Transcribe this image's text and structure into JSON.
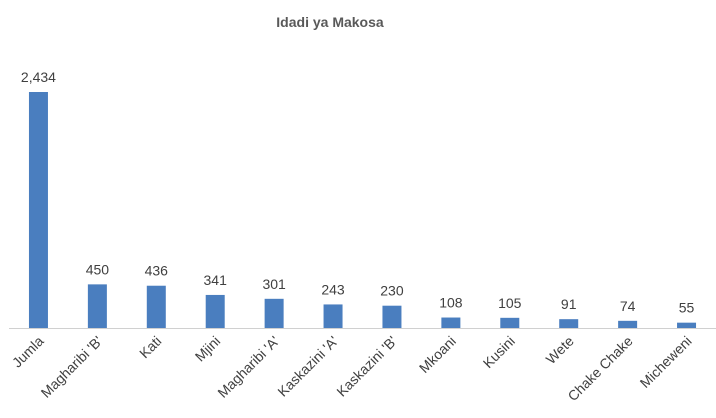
{
  "chart_data": {
    "type": "bar",
    "title": "Idadi ya Makosa",
    "categories": [
      "Jumla",
      "Magharibi 'B'",
      "Kati",
      "Mjini",
      "Magharibi 'A'",
      "Kaskazini 'A'",
      "Kaskazini 'B'",
      "Mkoani",
      "Kusini",
      "Wete",
      "Chake Chake",
      "Micheweni"
    ],
    "values": [
      2434,
      450,
      436,
      341,
      301,
      243,
      230,
      108,
      105,
      91,
      74,
      55
    ],
    "value_labels": [
      "2,434",
      "450",
      "436",
      "341",
      "301",
      "243",
      "230",
      "108",
      "105",
      "91",
      "74",
      "55"
    ],
    "color": "#4a7ebf"
  }
}
